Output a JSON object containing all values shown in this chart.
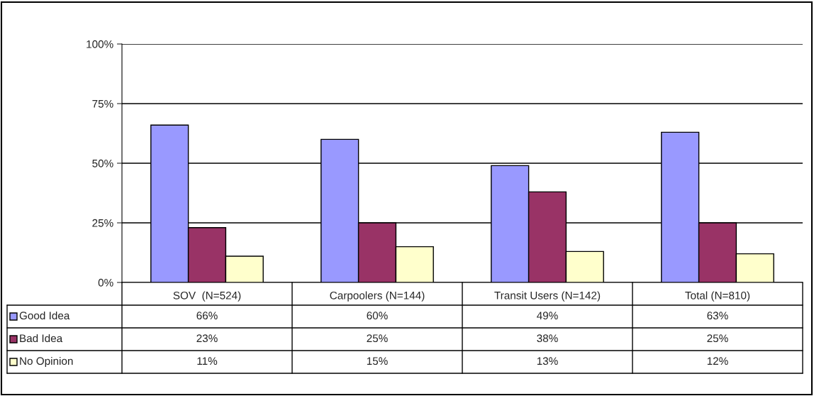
{
  "chart_data": {
    "type": "bar",
    "categories": [
      "SOV  (N=524)",
      "Carpoolers (N=144)",
      "Transit Users (N=142)",
      "Total (N=810)"
    ],
    "series": [
      {
        "name": "Good Idea",
        "color": "#9999ff",
        "values": [
          66,
          60,
          49,
          63
        ],
        "value_labels": [
          "66%",
          "60%",
          "49%",
          "63%"
        ]
      },
      {
        "name": "Bad Idea",
        "color": "#993366",
        "values": [
          23,
          25,
          38,
          25
        ],
        "value_labels": [
          "23%",
          "25%",
          "38%",
          "25%"
        ]
      },
      {
        "name": "No Opinion",
        "color": "#ffffcc",
        "values": [
          11,
          15,
          13,
          12
        ],
        "value_labels": [
          "11%",
          "15%",
          "13%",
          "12%"
        ]
      }
    ],
    "ylim": [
      0,
      100
    ],
    "yticks": [
      {
        "value": 0,
        "label": "0%"
      },
      {
        "value": 25,
        "label": "25%"
      },
      {
        "value": 50,
        "label": "50%"
      },
      {
        "value": 75,
        "label": "75%"
      },
      {
        "value": 100,
        "label": "100%"
      }
    ],
    "grid": "y",
    "legend": "bottom left"
  }
}
